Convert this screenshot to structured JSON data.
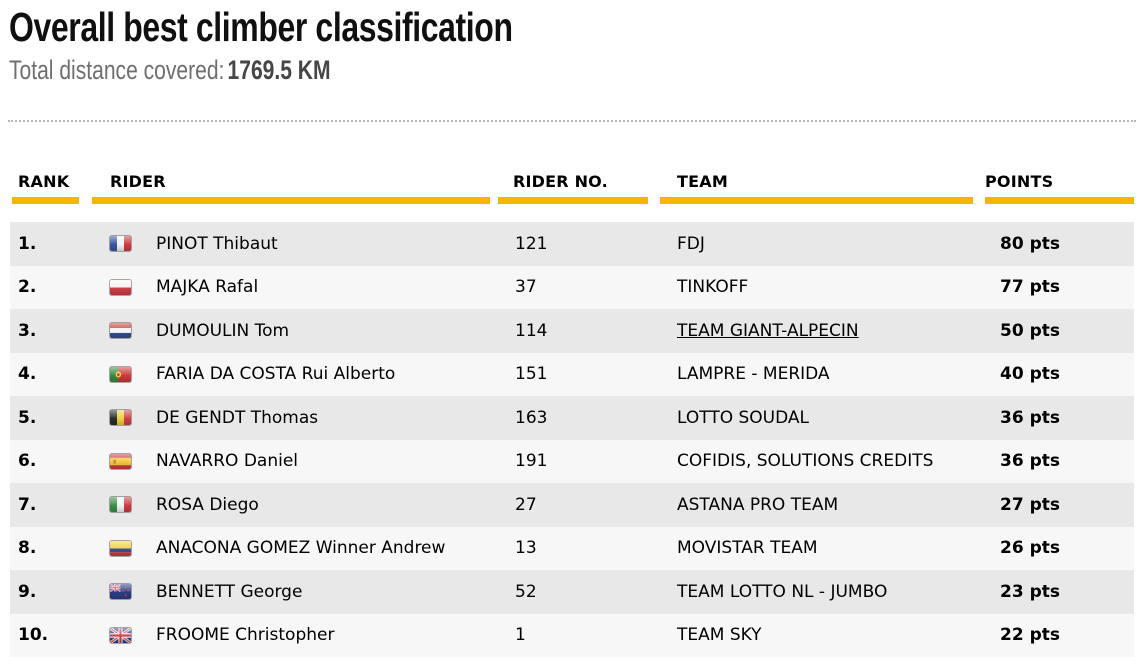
{
  "header": {
    "title": "Overall best climber classification",
    "subtitle_label": "Total distance covered:",
    "subtitle_value": "1769.5 KM"
  },
  "colors": {
    "accent_yellow": "#f7b500",
    "row_odd_bg": "#e8e8e8",
    "row_even_bg": "#f7f7f7",
    "subtitle_gray": "#6f6f6f"
  },
  "table": {
    "columns": [
      {
        "key": "rank",
        "label": "RANK"
      },
      {
        "key": "rider",
        "label": "RIDER"
      },
      {
        "key": "rider_no",
        "label": "RIDER NO."
      },
      {
        "key": "team",
        "label": "TEAM"
      },
      {
        "key": "points",
        "label": "POINTS"
      }
    ],
    "rows": [
      {
        "rank": "1.",
        "flag": "fr",
        "flag_country": "france",
        "rider": "PINOT Thibaut",
        "rider_no": "121",
        "team": "FDJ",
        "team_underline": false,
        "points": "80 pts"
      },
      {
        "rank": "2.",
        "flag": "pl",
        "flag_country": "poland",
        "rider": "MAJKA Rafal",
        "rider_no": "37",
        "team": "TINKOFF",
        "team_underline": false,
        "points": "77 pts"
      },
      {
        "rank": "3.",
        "flag": "nl",
        "flag_country": "netherlands",
        "rider": "DUMOULIN Tom",
        "rider_no": "114",
        "team": "TEAM GIANT-ALPECIN",
        "team_underline": true,
        "points": "50 pts"
      },
      {
        "rank": "4.",
        "flag": "pt",
        "flag_country": "portugal",
        "rider": "FARIA DA COSTA Rui Alberto",
        "rider_no": "151",
        "team": "LAMPRE - MERIDA",
        "team_underline": false,
        "points": "40 pts"
      },
      {
        "rank": "5.",
        "flag": "be",
        "flag_country": "belgium",
        "rider": "DE GENDT Thomas",
        "rider_no": "163",
        "team": "LOTTO SOUDAL",
        "team_underline": false,
        "points": "36 pts"
      },
      {
        "rank": "6.",
        "flag": "es",
        "flag_country": "spain",
        "rider": "NAVARRO Daniel",
        "rider_no": "191",
        "team": "COFIDIS, SOLUTIONS CREDITS",
        "team_underline": false,
        "points": "36 pts"
      },
      {
        "rank": "7.",
        "flag": "it",
        "flag_country": "italy",
        "rider": "ROSA Diego",
        "rider_no": "27",
        "team": "ASTANA PRO TEAM",
        "team_underline": false,
        "points": "27 pts"
      },
      {
        "rank": "8.",
        "flag": "co",
        "flag_country": "colombia",
        "rider": "ANACONA GOMEZ Winner Andrew",
        "rider_no": "13",
        "team": "MOVISTAR TEAM",
        "team_underline": false,
        "points": "26 pts"
      },
      {
        "rank": "9.",
        "flag": "nz",
        "flag_country": "new-zealand",
        "rider": "BENNETT George",
        "rider_no": "52",
        "team": "TEAM LOTTO NL - JUMBO",
        "team_underline": false,
        "points": "23 pts"
      },
      {
        "rank": "10.",
        "flag": "gb",
        "flag_country": "great-britain",
        "rider": "FROOME Christopher",
        "rider_no": "1",
        "team": "TEAM SKY",
        "team_underline": false,
        "points": "22 pts"
      }
    ]
  }
}
